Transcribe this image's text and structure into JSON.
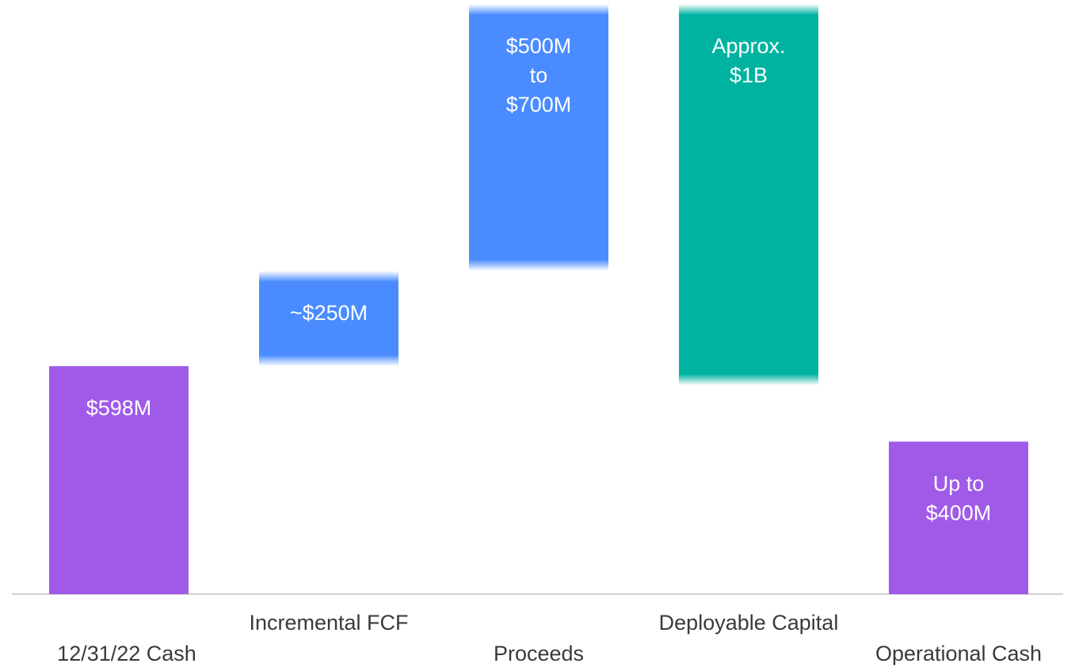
{
  "chart_data": {
    "type": "waterfall",
    "categories": [
      "12/31/22 Cash",
      "Incremental FCF",
      "Proceeds",
      "Deployable Capital",
      "Operational Cash"
    ],
    "values": [
      598,
      250,
      500,
      1000,
      400
    ],
    "range_high": [
      null,
      null,
      700,
      null,
      null
    ],
    "value_labels": [
      "$598M",
      "~$250M",
      "$500M\nto\n$700M",
      "Approx.\n$1B",
      "Up to\n$400M"
    ],
    "kinds": [
      "start",
      "increase",
      "increase",
      "total",
      "end"
    ],
    "colors": [
      "#a05ae8",
      "#4a8cff",
      "#4a8cff",
      "#00b3a1",
      "#a05ae8"
    ],
    "faded": [
      false,
      true,
      true,
      true,
      false
    ]
  }
}
